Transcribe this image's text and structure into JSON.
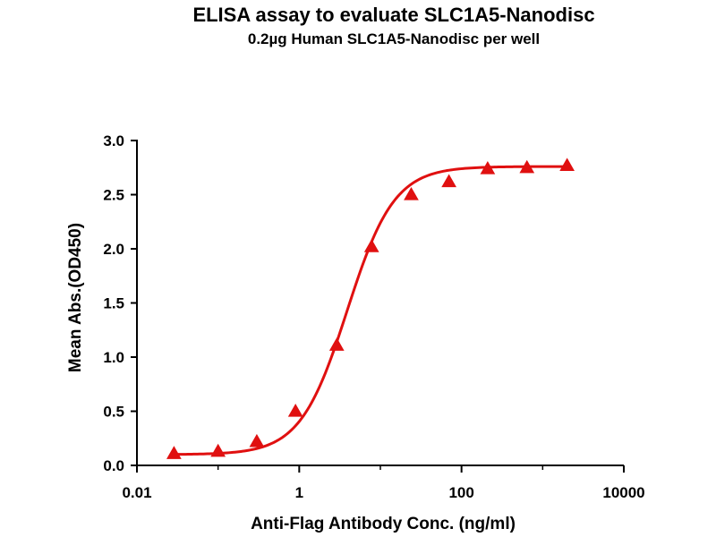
{
  "chart_data": {
    "type": "scatter",
    "title": "ELISA assay to evaluate SLC1A5-Nanodisc",
    "subtitle": "0.2µg Human SLC1A5-Nanodisc per well",
    "xlabel": "Anti-Flag Antibody Conc. (ng/ml)",
    "ylabel": "Mean Abs.(OD450)",
    "xscale": "log",
    "xlim": [
      0.01,
      10000
    ],
    "ylim": [
      0,
      3.0
    ],
    "xticks": [
      {
        "value": 0.01,
        "label": "0.01"
      },
      {
        "value": 1,
        "label": "1"
      },
      {
        "value": 100,
        "label": "100"
      },
      {
        "value": 10000,
        "label": "10000"
      }
    ],
    "yticks": [
      {
        "value": 0,
        "label": "0.0"
      },
      {
        "value": 0.5,
        "label": "0.5"
      },
      {
        "value": 1.0,
        "label": "1.0"
      },
      {
        "value": 1.5,
        "label": "1.5"
      },
      {
        "value": 2.0,
        "label": "2.0"
      },
      {
        "value": 2.5,
        "label": "2.5"
      },
      {
        "value": 3.0,
        "label": "3.0"
      }
    ],
    "grid": false,
    "series": [
      {
        "marker": "triangle",
        "color": "#e01010",
        "points": [
          {
            "x": 0.0286,
            "y": 0.11
          },
          {
            "x": 0.1,
            "y": 0.13
          },
          {
            "x": 0.3,
            "y": 0.22
          },
          {
            "x": 0.9,
            "y": 0.5
          },
          {
            "x": 2.9,
            "y": 1.11
          },
          {
            "x": 7.8,
            "y": 2.02
          },
          {
            "x": 24,
            "y": 2.5
          },
          {
            "x": 70,
            "y": 2.62
          },
          {
            "x": 210,
            "y": 2.74
          },
          {
            "x": 640,
            "y": 2.75
          },
          {
            "x": 2000,
            "y": 2.77
          }
        ],
        "fit": {
          "model": "4PL",
          "bottom": 0.1,
          "top": 2.76,
          "ec50": 3.9,
          "hill": 1.5
        }
      }
    ]
  }
}
